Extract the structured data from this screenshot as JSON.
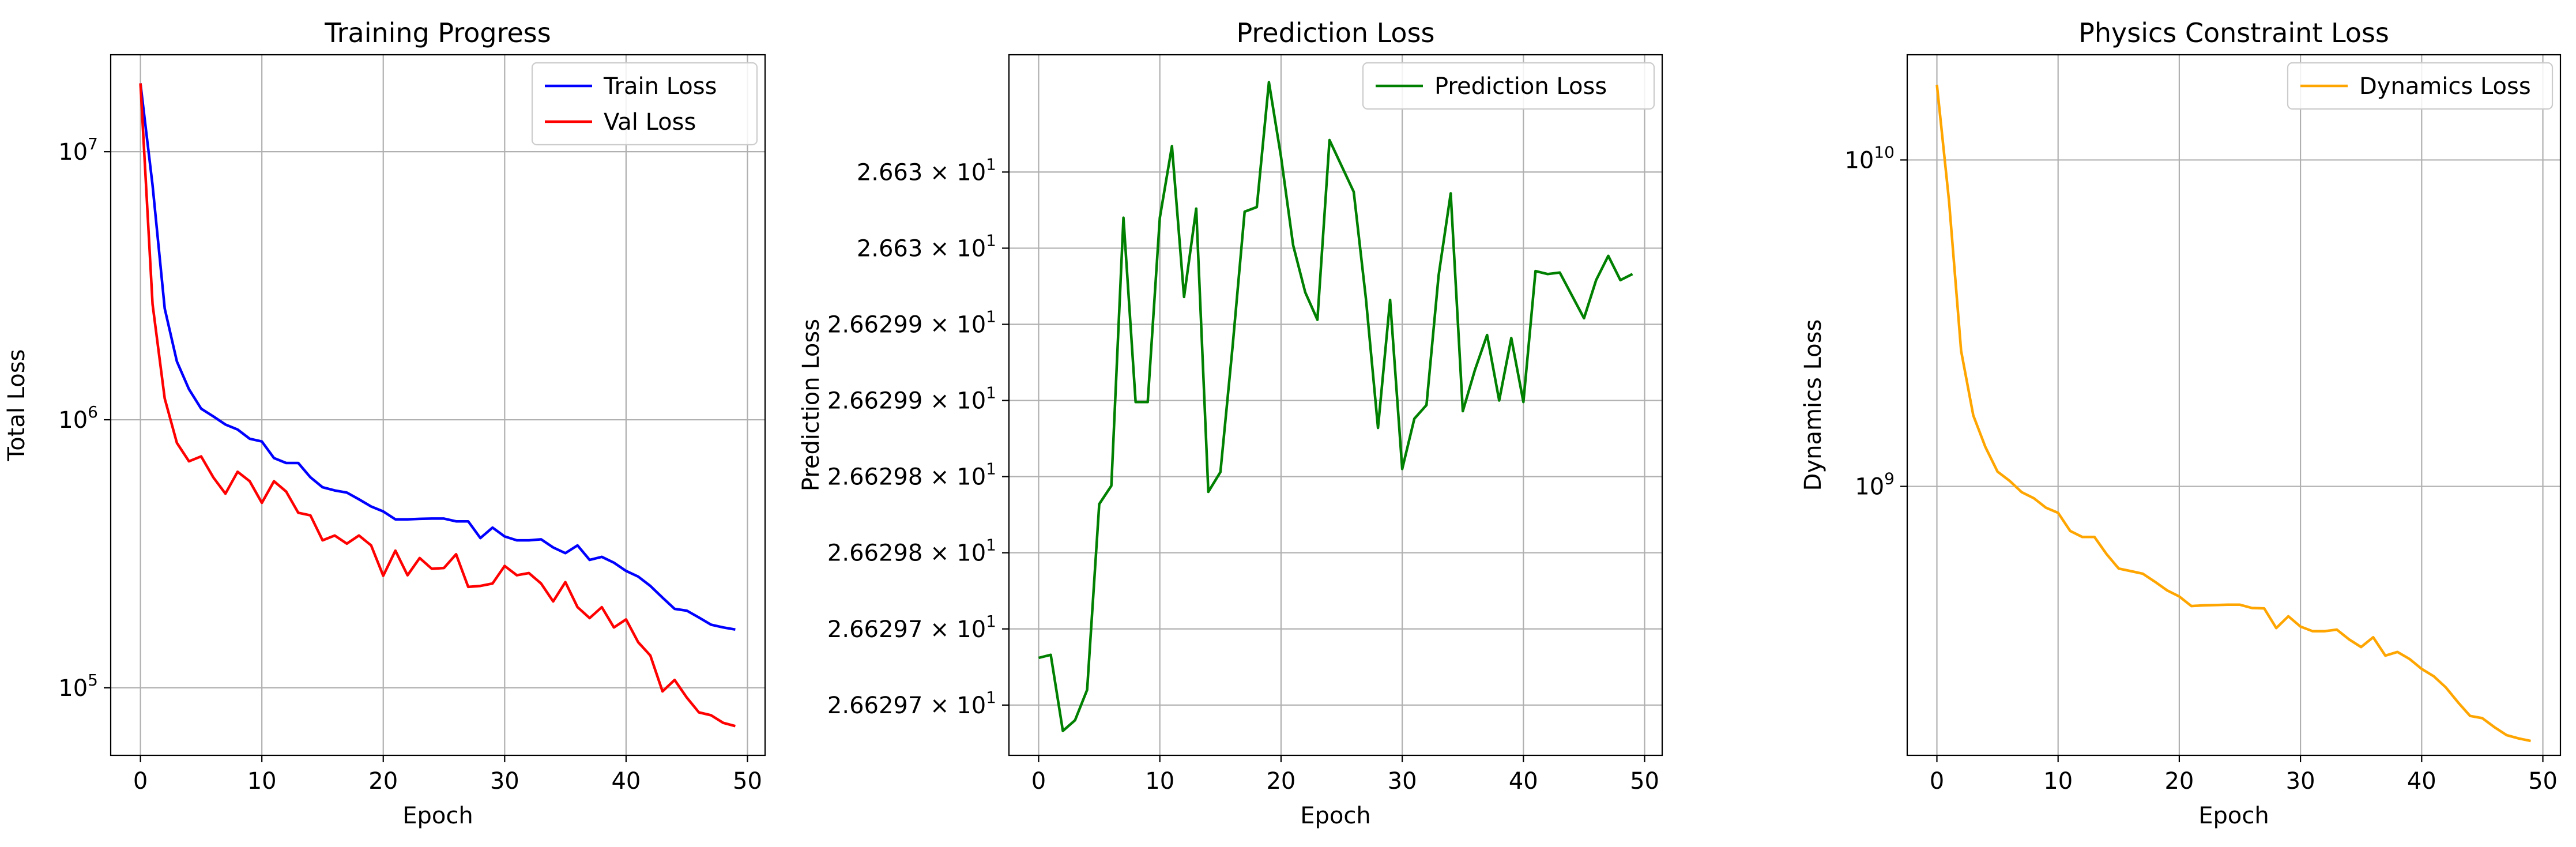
{
  "chart_data": [
    {
      "type": "line",
      "title": "Training Progress",
      "xlabel": "Epoch",
      "ylabel": "Total Loss",
      "yscale": "log",
      "grid": true,
      "legend": "top-right",
      "xlim": [
        -2.45,
        51.45
      ],
      "ylim": [
        56000,
        23000000
      ],
      "x_ticks": [
        0,
        10,
        20,
        30,
        40,
        50
      ],
      "y_ticks": [
        {
          "value": 100000,
          "base": "10",
          "exp": "5"
        },
        {
          "value": 1000000,
          "base": "10",
          "exp": "6"
        },
        {
          "value": 10000000,
          "base": "10",
          "exp": "7"
        }
      ],
      "x": [
        0,
        1,
        2,
        3,
        4,
        5,
        6,
        7,
        8,
        9,
        10,
        11,
        12,
        13,
        14,
        15,
        16,
        17,
        18,
        19,
        20,
        21,
        22,
        23,
        24,
        25,
        26,
        27,
        28,
        29,
        30,
        31,
        32,
        33,
        34,
        35,
        36,
        37,
        38,
        39,
        40,
        41,
        42,
        43,
        44,
        45,
        46,
        47,
        48,
        49
      ],
      "series": [
        {
          "name": "Train Loss",
          "color": "#0000ff",
          "values": [
            18000000,
            7500000,
            2600000,
            1650000,
            1300000,
            1100000,
            1030000,
            960000,
            920000,
            850000,
            830000,
            720000,
            690000,
            690000,
            610000,
            560000,
            545000,
            535000,
            505000,
            475000,
            455000,
            425000,
            425000,
            427000,
            428000,
            428000,
            418000,
            418000,
            362000,
            396000,
            367000,
            355000,
            355000,
            358000,
            334000,
            318000,
            340000,
            300000,
            308000,
            293000,
            273000,
            260000,
            240000,
            217000,
            197000,
            194000,
            183000,
            172000,
            168000,
            165000
          ]
        },
        {
          "name": "Val Loss",
          "color": "#ff0000",
          "values": [
            18000000,
            2700000,
            1200000,
            820000,
            700000,
            730000,
            610000,
            530000,
            640000,
            590000,
            490000,
            590000,
            540000,
            450000,
            440000,
            355000,
            370000,
            345000,
            370000,
            340000,
            262000,
            325000,
            263000,
            305000,
            278000,
            280000,
            315000,
            238000,
            240000,
            245000,
            285000,
            263000,
            268000,
            245000,
            210000,
            248000,
            200000,
            182000,
            200000,
            168000,
            180000,
            148000,
            132000,
            97000,
            107000,
            92000,
            81000,
            79000,
            74000,
            72000
          ]
        }
      ]
    },
    {
      "type": "line",
      "title": "Prediction Loss",
      "xlabel": "Epoch",
      "ylabel": "Prediction Loss",
      "yscale": "log",
      "grid": true,
      "legend": "top-right",
      "xlim": [
        -2.45,
        51.45
      ],
      "ylim": [
        26.629667,
        26.630127
      ],
      "x_ticks": [
        0,
        10,
        20,
        30,
        40,
        50
      ],
      "y_ticks": [
        {
          "value": 26.6297,
          "mantissa": "2.66297",
          "base": "10",
          "exp": "1"
        },
        {
          "value": 26.62975,
          "mantissa": "2.66297",
          "base": "10",
          "exp": "1"
        },
        {
          "value": 26.6298,
          "mantissa": "2.66298",
          "base": "10",
          "exp": "1"
        },
        {
          "value": 26.62985,
          "mantissa": "2.66298",
          "base": "10",
          "exp": "1"
        },
        {
          "value": 26.6299,
          "mantissa": "2.66299",
          "base": "10",
          "exp": "1"
        },
        {
          "value": 26.62995,
          "mantissa": "2.66299",
          "base": "10",
          "exp": "1"
        },
        {
          "value": 26.63,
          "mantissa": "2.663",
          "base": "10",
          "exp": "1"
        },
        {
          "value": 26.63005,
          "mantissa": "2.663",
          "base": "10",
          "exp": "1"
        }
      ],
      "x": [
        0,
        1,
        2,
        3,
        4,
        5,
        6,
        7,
        8,
        9,
        10,
        11,
        12,
        13,
        14,
        15,
        16,
        17,
        18,
        19,
        20,
        21,
        22,
        23,
        24,
        25,
        26,
        27,
        28,
        29,
        30,
        31,
        32,
        33,
        34,
        35,
        36,
        37,
        38,
        39,
        40,
        41,
        42,
        43,
        44,
        45,
        46,
        47,
        48,
        49
      ],
      "series": [
        {
          "name": "Prediction Loss",
          "color": "#008000",
          "values": [
            26.629731,
            26.629733,
            26.629683,
            26.62969,
            26.62971,
            26.629832,
            26.629844,
            26.63002,
            26.629899,
            26.629899,
            26.63002,
            26.630067,
            26.629968,
            26.630026,
            26.62984,
            26.629853,
            26.629935,
            26.630024,
            26.630027,
            26.630109,
            26.63006,
            26.630002,
            26.629971,
            26.629953,
            26.630071,
            26.630054,
            26.630037,
            26.629967,
            26.629882,
            26.629966,
            26.629855,
            26.629888,
            26.629897,
            26.629982,
            26.630036,
            26.629893,
            26.62992,
            26.629943,
            26.6299,
            26.629941,
            26.629899,
            26.629985,
            26.629983,
            26.629984,
            26.629969,
            26.629954,
            26.629979,
            26.629995,
            26.629979,
            26.629983
          ]
        }
      ]
    },
    {
      "type": "line",
      "title": "Physics Constraint Loss",
      "xlabel": "Epoch",
      "ylabel": "Dynamics Loss",
      "yscale": "log",
      "grid": true,
      "legend": "top-right",
      "xlim": [
        -2.45,
        51.45
      ],
      "ylim": [
        150000000,
        21000000000
      ],
      "x_ticks": [
        0,
        10,
        20,
        30,
        40,
        50
      ],
      "y_ticks": [
        {
          "value": 1000000000,
          "base": "10",
          "exp": "9"
        },
        {
          "value": 10000000000,
          "base": "10",
          "exp": "10"
        }
      ],
      "x": [
        0,
        1,
        2,
        3,
        4,
        5,
        6,
        7,
        8,
        9,
        10,
        11,
        12,
        13,
        14,
        15,
        16,
        17,
        18,
        19,
        20,
        21,
        22,
        23,
        24,
        25,
        26,
        27,
        28,
        29,
        30,
        31,
        32,
        33,
        34,
        35,
        36,
        37,
        38,
        39,
        40,
        41,
        42,
        43,
        44,
        45,
        46,
        47,
        48,
        49
      ],
      "series": [
        {
          "name": "Dynamics Loss",
          "color": "#ffa500",
          "values": [
            17000000000,
            7500000000,
            2600000000,
            1650000000,
            1320000000,
            1110000000,
            1040000000,
            960000000,
            920000000,
            860000000,
            830000000,
            730000000,
            700000000,
            700000000,
            620000000,
            560000000,
            550000000,
            540000000,
            510000000,
            480000000,
            460000000,
            430000000,
            432000000,
            433000000,
            434000000,
            434000000,
            424000000,
            423000000,
            368000000,
            400000000,
            372000000,
            360000000,
            360000000,
            364000000,
            340000000,
            322000000,
            345000000,
            303000000,
            311000000,
            296000000,
            276000000,
            262000000,
            242000000,
            218000000,
            198000000,
            195000000,
            183000000,
            173000000,
            169000000,
            166000000
          ]
        }
      ]
    }
  ]
}
